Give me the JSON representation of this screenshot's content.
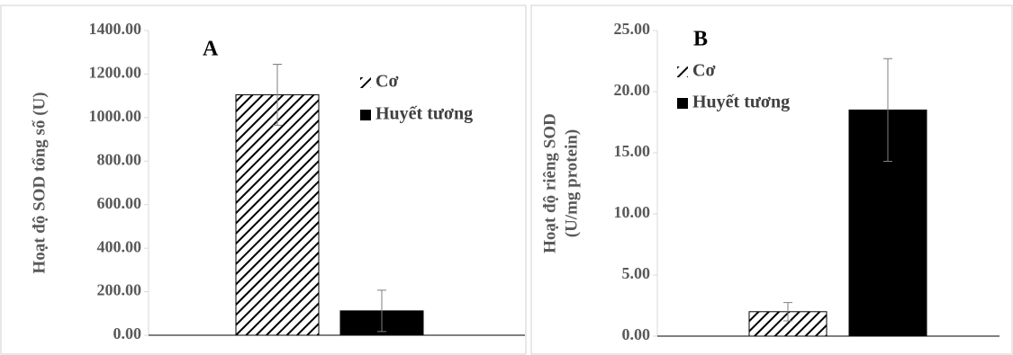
{
  "chart_data": [
    {
      "type": "bar",
      "panel_label": "A",
      "y_label": [
        "Hoạt độ SOD tổng số (U)"
      ],
      "categories": [
        null
      ],
      "series": [
        {
          "name": "Cơ",
          "color": "#000000",
          "fill": "hatch",
          "values": [
            1105
          ],
          "errors": [
            140
          ]
        },
        {
          "name": "Huyết tương",
          "color": "#000000",
          "fill": "solid",
          "values": [
            112
          ],
          "errors": [
            95
          ]
        }
      ],
      "ylim": [
        0,
        1400
      ],
      "yticks": [
        {
          "value": 0,
          "label": "0.00"
        },
        {
          "value": 200,
          "label": "200.00"
        },
        {
          "value": 400,
          "label": "400.00"
        },
        {
          "value": 600,
          "label": "600.00"
        },
        {
          "value": 800,
          "label": "800.00"
        },
        {
          "value": 1000,
          "label": "1000.00"
        },
        {
          "value": 1200,
          "label": "1200.00"
        },
        {
          "value": 1400,
          "label": "1400.00"
        }
      ]
    },
    {
      "type": "bar",
      "panel_label": "B",
      "y_label": [
        "Hoạt độ riêng SOD",
        "(U/mg protein)"
      ],
      "categories": [
        null
      ],
      "series": [
        {
          "name": "Cơ",
          "color": "#000000",
          "fill": "hatch",
          "values": [
            2.0
          ],
          "errors": [
            0.75
          ]
        },
        {
          "name": "Huyết tương",
          "color": "#000000",
          "fill": "solid",
          "values": [
            18.5
          ],
          "errors": [
            4.2
          ]
        }
      ],
      "ylim": [
        0,
        25
      ],
      "yticks": [
        {
          "value": 0,
          "label": "0.00"
        },
        {
          "value": 5,
          "label": "5.00"
        },
        {
          "value": 10,
          "label": "10.00"
        },
        {
          "value": 15,
          "label": "15.00"
        },
        {
          "value": 20,
          "label": "20.00"
        },
        {
          "value": 25,
          "label": "25.00"
        }
      ]
    }
  ]
}
